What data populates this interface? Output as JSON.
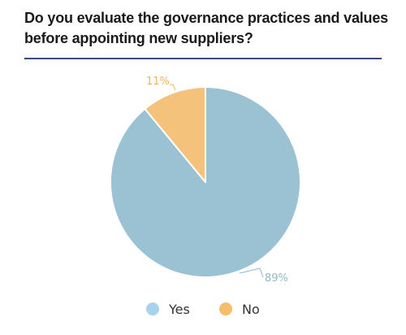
{
  "chart_data": {
    "type": "pie",
    "title": "Do you evaluate the governance practices and values before appointing new suppliers?",
    "slices": [
      {
        "label": "Yes",
        "value": 89,
        "display": "89%",
        "color": "#9bc2d3"
      },
      {
        "label": "No",
        "value": 11,
        "display": "11%",
        "color": "#f4c27a"
      }
    ],
    "legend_placement": "bottom",
    "legend_marker_colors": [
      "#a7d3ea",
      "#f6bd6a"
    ],
    "label_colors": [
      "#8fb8cc",
      "#efb45e"
    ]
  }
}
